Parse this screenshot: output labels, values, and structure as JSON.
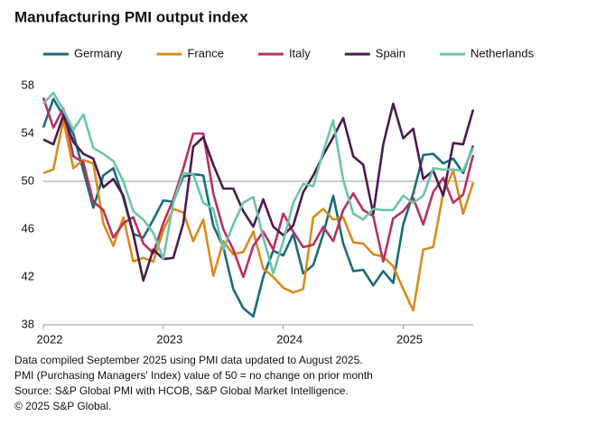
{
  "chart_data": {
    "type": "line",
    "title": "Manufacturing PMI output index",
    "categories": [
      "2022",
      null,
      null,
      null,
      null,
      null,
      null,
      null,
      null,
      null,
      null,
      null,
      "2023",
      null,
      null,
      null,
      null,
      null,
      null,
      null,
      null,
      null,
      null,
      null,
      "2024",
      null,
      null,
      null,
      null,
      null,
      null,
      null,
      null,
      null,
      null,
      null,
      "2025",
      null,
      null,
      null,
      null,
      null,
      null,
      null
    ],
    "series": [
      {
        "name": "Germany",
        "color": "#1b6b7b",
        "values": [
          54.5,
          56.9,
          55.5,
          54.0,
          50.9,
          47.8,
          50.5,
          51.1,
          48.6,
          45.6,
          45.3,
          46.8,
          48.4,
          48.3,
          50.4,
          50.6,
          50.5,
          46.3,
          44.5,
          41.0,
          39.4,
          38.7,
          42.0,
          44.2,
          43.8,
          45.6,
          42.3,
          43.0,
          45.6,
          48.8,
          44.8,
          42.5,
          42.6,
          41.3,
          42.5,
          41.5,
          46.4,
          49.0,
          52.2,
          52.3,
          51.5,
          51.9,
          50.7,
          53.0
        ]
      },
      {
        "name": "France",
        "color": "#d98b1c",
        "values": [
          50.7,
          51.0,
          55.1,
          51.1,
          51.8,
          51.5,
          46.5,
          44.6,
          47.0,
          43.3,
          43.6,
          43.3,
          45.9,
          47.7,
          47.4,
          45.0,
          46.8,
          42.1,
          45.0,
          43.9,
          44.1,
          45.8,
          42.7,
          42.0,
          41.1,
          40.7,
          41.0,
          47.0,
          47.7,
          46.8,
          47.0,
          44.9,
          44.8,
          43.9,
          43.7,
          42.9,
          41.0,
          39.2,
          44.3,
          44.5,
          49.0,
          50.9,
          47.3,
          49.9
        ]
      },
      {
        "name": "Italy",
        "color": "#b8325f",
        "values": [
          57.0,
          54.5,
          56.1,
          52.1,
          51.6,
          48.3,
          47.6,
          45.3,
          46.5,
          47.0,
          44.8,
          44.0,
          46.5,
          48.5,
          51.1,
          54.0,
          54.0,
          49.0,
          46.0,
          44.3,
          42.0,
          44.6,
          45.8,
          44.3,
          47.3,
          45.8,
          44.5,
          44.7,
          46.2,
          45.0,
          47.6,
          49.0,
          47.6,
          47.1,
          43.3,
          46.9,
          47.5,
          48.6,
          46.4,
          49.1,
          50.3,
          48.2,
          48.9,
          52.2
        ]
      },
      {
        "name": "Spain",
        "color": "#4b1b50",
        "values": [
          53.5,
          53.1,
          55.5,
          53.3,
          52.3,
          51.9,
          49.5,
          50.2,
          48.8,
          45.6,
          41.7,
          44.3,
          43.5,
          43.6,
          46.5,
          52.9,
          53.7,
          51.4,
          49.4,
          49.4,
          47.5,
          46.2,
          48.5,
          46.2,
          45.5,
          46.3,
          49.1,
          50.5,
          52.2,
          53.7,
          55.3,
          52.1,
          51.4,
          47.3,
          53.1,
          56.5,
          53.6,
          54.4,
          50.2,
          50.9,
          48.8,
          53.2,
          53.1,
          56.0
        ]
      },
      {
        "name": "Netherlands",
        "color": "#6cc4a9",
        "values": [
          56.5,
          57.4,
          56.0,
          54.3,
          55.6,
          52.8,
          52.3,
          51.7,
          50.0,
          47.5,
          46.8,
          45.7,
          43.5,
          48.2,
          50.7,
          50.6,
          48.2,
          47.7,
          44.3,
          46.4,
          48.2,
          48.7,
          45.3,
          42.3,
          45.0,
          48.2,
          49.8,
          49.6,
          52.5,
          55.1,
          50.1,
          47.3,
          46.8,
          47.7,
          47.6,
          47.6,
          48.8,
          48.2,
          48.8,
          51.1,
          51.0,
          51.0,
          50.9,
          52.8
        ]
      }
    ],
    "ylim": [
      38,
      58
    ],
    "yticks": [
      38,
      42,
      46,
      50,
      54,
      58
    ],
    "reference_line": 50,
    "grid": false,
    "legend": "top",
    "notes": [
      "Data compiled September 2025 using PMI data updated to August 2025.",
      "PMI (Purchasing Managers' Index) value of 50 = no change on prior month",
      "Source: S&P Global PMI with HCOB, S&P Global Market Intelligence.",
      "© 2025 S&P Global."
    ]
  }
}
